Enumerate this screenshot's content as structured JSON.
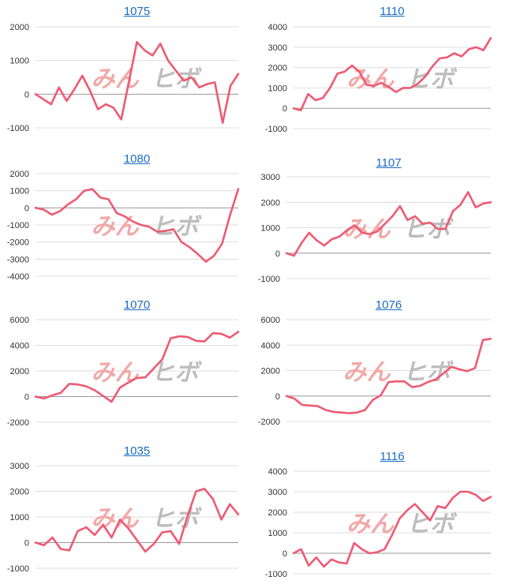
{
  "line_color": "#ee5a73",
  "grid_color": "#dddddd",
  "zero_color": "#999999",
  "title_color": "#1a6ec2",
  "watermark": {
    "text_left": "みん",
    "text_right": "ヒボ",
    "left_color": "#f2a8a8",
    "right_color": "#bdbdbd"
  },
  "chart_data": [
    {
      "type": "line",
      "title": "1075",
      "ylim": [
        -1000,
        2000
      ],
      "yticks": [
        -1000,
        0,
        1000,
        2000
      ],
      "tick_labels": [
        "-1000",
        "0",
        "1000",
        "2000"
      ],
      "values": [
        0,
        -150,
        -300,
        200,
        -200,
        150,
        550,
        100,
        -450,
        -300,
        -400,
        -750,
        400,
        1550,
        1300,
        1150,
        1500,
        1000,
        700,
        400,
        500,
        200,
        300,
        350,
        -850,
        250,
        600
      ]
    },
    {
      "type": "line",
      "title": "1110",
      "ylim": [
        -1000,
        4000
      ],
      "yticks": [
        -1000,
        0,
        1000,
        2000,
        3000,
        4000
      ],
      "tick_labels": [
        "-1000",
        "0",
        "1000",
        "2000",
        "3000",
        "4000"
      ],
      "values": [
        0,
        -100,
        700,
        400,
        500,
        1000,
        1700,
        1800,
        2100,
        1800,
        1150,
        1100,
        1250,
        1050,
        800,
        1000,
        1000,
        1200,
        1550,
        2050,
        2450,
        2500,
        2700,
        2550,
        2900,
        3000,
        2850,
        3450
      ]
    },
    {
      "type": "line",
      "title": "1080",
      "ylim": [
        -4000,
        2000
      ],
      "yticks": [
        -4000,
        -3000,
        -2000,
        -1000,
        0,
        1000,
        2000
      ],
      "tick_labels": [
        "-4000",
        "-3000",
        "-2000",
        "-1000",
        "0",
        "1000",
        "2000"
      ],
      "values": [
        0,
        -100,
        -400,
        -200,
        200,
        500,
        1000,
        1100,
        600,
        500,
        -300,
        -500,
        -800,
        -1000,
        -1100,
        -1400,
        -1350,
        -1250,
        -2000,
        -2300,
        -2700,
        -3150,
        -2800,
        -2100,
        -400,
        1100
      ]
    },
    {
      "type": "line",
      "title": "1107",
      "ylim": [
        -1000,
        3000
      ],
      "yticks": [
        -1000,
        0,
        1000,
        2000,
        3000
      ],
      "tick_labels": [
        "-1000",
        "0",
        "1000",
        "2000",
        "3000"
      ],
      "values": [
        0,
        -100,
        400,
        800,
        500,
        300,
        550,
        650,
        900,
        1100,
        800,
        750,
        850,
        1150,
        1450,
        1850,
        1300,
        1450,
        1150,
        1200,
        950,
        950,
        1650,
        1900,
        2400,
        1800,
        1950,
        2000
      ]
    },
    {
      "type": "line",
      "title": "1070",
      "ylim": [
        -2000,
        6000
      ],
      "yticks": [
        -2000,
        0,
        2000,
        4000,
        6000
      ],
      "tick_labels": [
        "-2000",
        "0",
        "2000",
        "4000",
        "6000"
      ],
      "values": [
        0,
        -150,
        100,
        300,
        1000,
        950,
        800,
        500,
        50,
        -400,
        700,
        1100,
        1450,
        1500,
        2200,
        2900,
        4550,
        4700,
        4650,
        4350,
        4300,
        4950,
        4900,
        4600,
        5050
      ]
    },
    {
      "type": "line",
      "title": "1076",
      "ylim": [
        -2000,
        6000
      ],
      "yticks": [
        -2000,
        0,
        2000,
        4000,
        6000
      ],
      "tick_labels": [
        "-2000",
        "0",
        "2000",
        "4000",
        "6000"
      ],
      "values": [
        0,
        -200,
        -700,
        -750,
        -800,
        -1100,
        -1250,
        -1300,
        -1350,
        -1300,
        -1100,
        -300,
        50,
        1100,
        1150,
        1150,
        700,
        800,
        1100,
        1300,
        1800,
        2300,
        2100,
        1950,
        2200,
        4400,
        4500
      ]
    },
    {
      "type": "line",
      "title": "1035",
      "ylim": [
        -1000,
        3000
      ],
      "yticks": [
        -1000,
        0,
        1000,
        2000,
        3000
      ],
      "tick_labels": [
        "-1000",
        "0",
        "1000",
        "2000",
        "3000"
      ],
      "values": [
        0,
        -100,
        200,
        -250,
        -300,
        450,
        600,
        300,
        700,
        200,
        900,
        550,
        100,
        -350,
        -50,
        400,
        450,
        -50,
        1050,
        2000,
        2100,
        1700,
        900,
        1500,
        1100
      ]
    },
    {
      "type": "line",
      "title": "1116",
      "ylim": [
        -1000,
        4000
      ],
      "yticks": [
        -1000,
        0,
        1000,
        2000,
        3000,
        4000
      ],
      "tick_labels": [
        "-1000",
        "0",
        "1000",
        "2000",
        "3000",
        "4000"
      ],
      "values": [
        0,
        200,
        -600,
        -200,
        -650,
        -300,
        -450,
        -500,
        500,
        200,
        0,
        50,
        200,
        900,
        1700,
        2100,
        2400,
        2000,
        1600,
        2300,
        2200,
        2700,
        3000,
        3000,
        2850,
        2550,
        2750
      ]
    }
  ]
}
